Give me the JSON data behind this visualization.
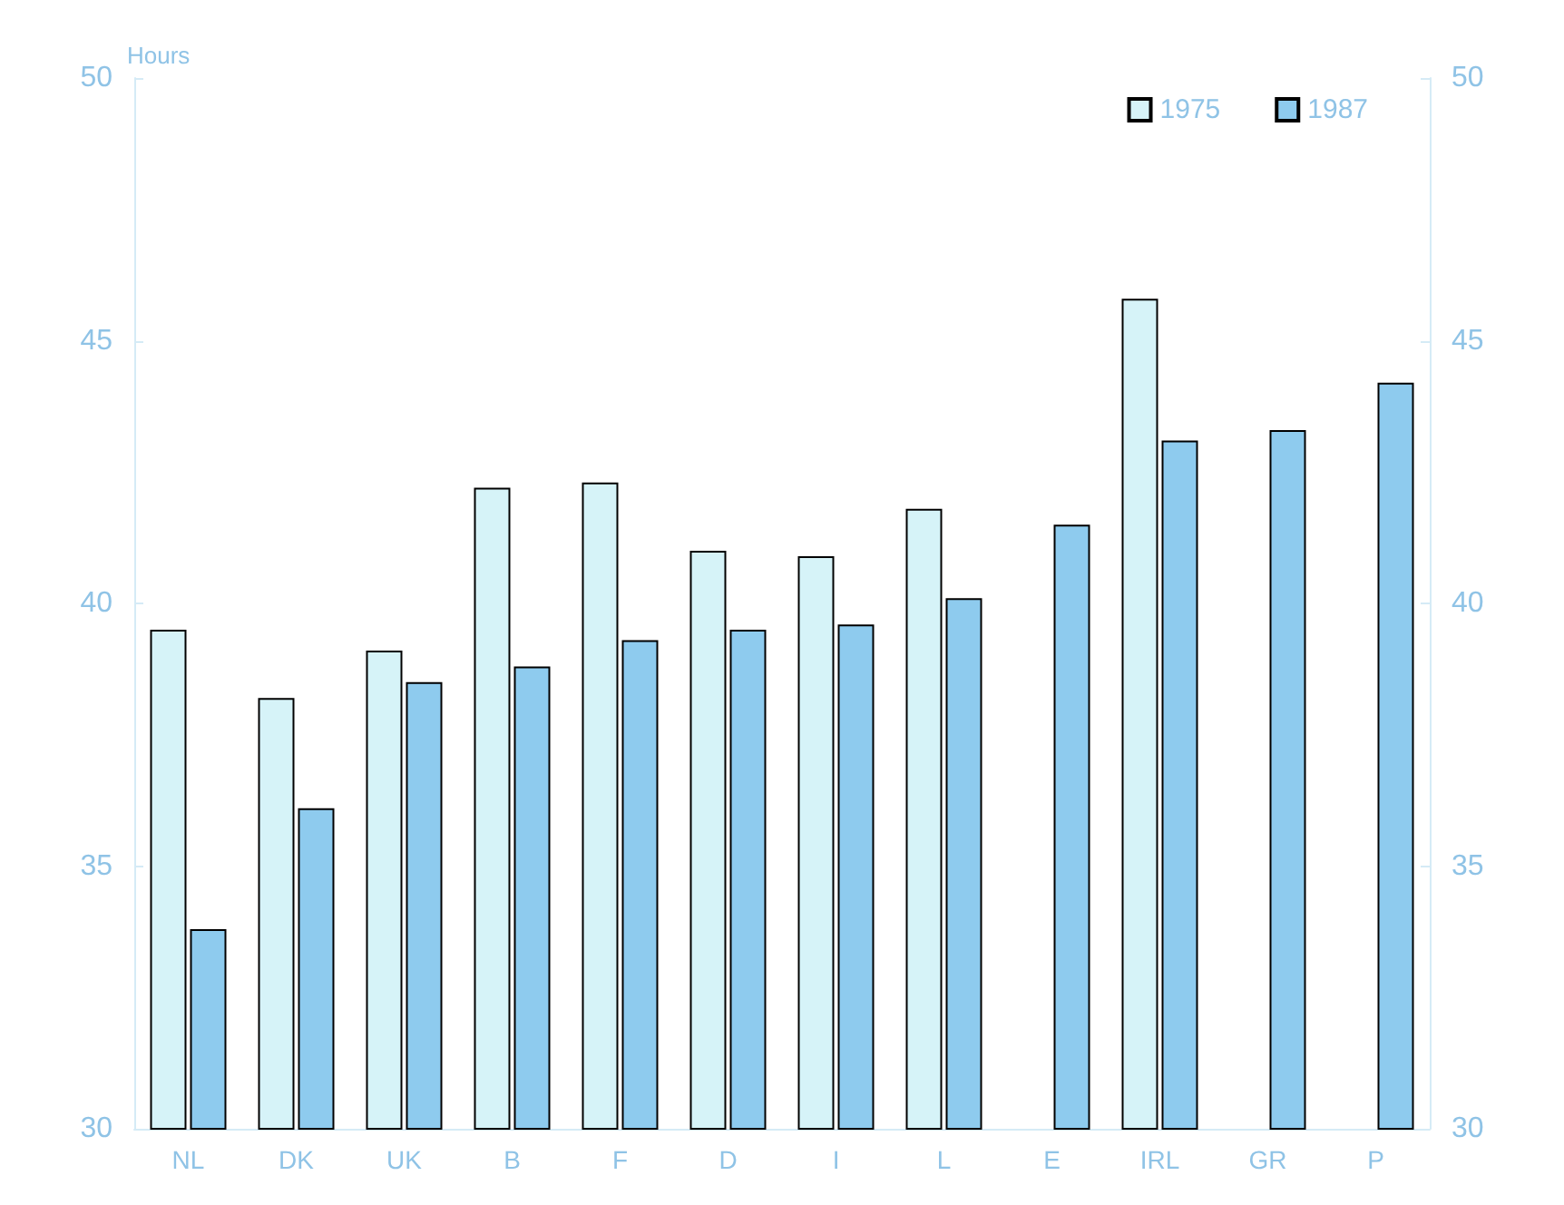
{
  "chart_data": {
    "type": "bar",
    "ylabel": "Hours",
    "categories": [
      "NL",
      "DK",
      "UK",
      "B",
      "F",
      "D",
      "I",
      "L",
      "E",
      "IRL",
      "GR",
      "P"
    ],
    "series": [
      {
        "name": "1975",
        "color": "#d6f3f8",
        "values": [
          39.5,
          38.2,
          39.1,
          42.2,
          42.3,
          41.0,
          40.9,
          41.8,
          null,
          45.8,
          null,
          null
        ]
      },
      {
        "name": "1987",
        "color": "#8ecbee",
        "values": [
          33.8,
          36.1,
          38.5,
          38.8,
          39.3,
          39.5,
          39.6,
          40.1,
          41.5,
          43.1,
          43.3,
          44.2
        ]
      }
    ],
    "ylim": [
      30,
      50
    ],
    "yticks": [
      30,
      35,
      40,
      45,
      50
    ],
    "y2lim": [
      30,
      50
    ],
    "y2ticks": [
      30,
      35,
      40,
      45,
      50
    ],
    "legend": "top right",
    "grid": false
  }
}
